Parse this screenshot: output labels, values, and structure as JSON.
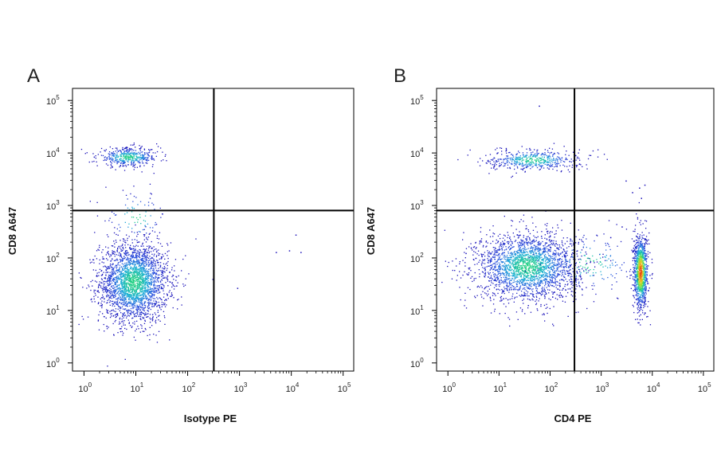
{
  "chart_data": [
    {
      "type": "scatter",
      "panel_label": "A",
      "xlabel": "Isotype PE",
      "ylabel": "CD8 A647",
      "x_scale": "log",
      "y_scale": "log",
      "xlim": [
        0.6,
        160000
      ],
      "ylim": [
        0.7,
        170000
      ],
      "x_ticks": [
        {
          "base": "10",
          "exp": "0",
          "value": 1
        },
        {
          "base": "10",
          "exp": "1",
          "value": 10
        },
        {
          "base": "10",
          "exp": "2",
          "value": 100
        },
        {
          "base": "10",
          "exp": "3",
          "value": 1000
        },
        {
          "base": "10",
          "exp": "4",
          "value": 10000
        },
        {
          "base": "10",
          "exp": "5",
          "value": 100000
        }
      ],
      "y_ticks": [
        {
          "base": "10",
          "exp": "0",
          "value": 1
        },
        {
          "base": "10",
          "exp": "1",
          "value": 10
        },
        {
          "base": "10",
          "exp": "2",
          "value": 100
        },
        {
          "base": "10",
          "exp": "3",
          "value": 1000
        },
        {
          "base": "10",
          "exp": "4",
          "value": 10000
        },
        {
          "base": "10",
          "exp": "5",
          "value": 100000
        }
      ],
      "quadrant_gate": {
        "x": 320,
        "y": 800
      },
      "populations": [
        {
          "x": 9,
          "y": 35,
          "spread_x": 0.33,
          "spread_y": 0.38,
          "count": 2600,
          "peak_color": "#26d060"
        },
        {
          "x": 7,
          "y": 8500,
          "spread_x": 0.3,
          "spread_y": 0.09,
          "count": 450,
          "peak_color": "#3a6ed8"
        },
        {
          "x": 10,
          "y": 600,
          "spread_x": 0.3,
          "spread_y": 0.25,
          "count": 90,
          "peak_color": "#2a3fd0"
        }
      ],
      "sparse_points": [
        [
          40,
          40
        ],
        [
          60,
          30
        ],
        [
          900,
          27
        ],
        [
          5000,
          130
        ],
        [
          9000,
          140
        ],
        [
          15000,
          130
        ],
        [
          12000,
          280
        ],
        [
          300,
          40
        ]
      ],
      "density_colors": [
        "#1a10b8",
        "#2d55e0",
        "#1fb0d8",
        "#20d080",
        "#9be030",
        "#f0c020",
        "#e84010"
      ]
    },
    {
      "type": "scatter",
      "panel_label": "B",
      "xlabel": "CD4 PE",
      "ylabel": "CD8 A647",
      "x_scale": "log",
      "y_scale": "log",
      "xlim": [
        0.6,
        160000
      ],
      "ylim": [
        0.7,
        170000
      ],
      "x_ticks": [
        {
          "base": "10",
          "exp": "0",
          "value": 1
        },
        {
          "base": "10",
          "exp": "1",
          "value": 10
        },
        {
          "base": "10",
          "exp": "2",
          "value": 100
        },
        {
          "base": "10",
          "exp": "3",
          "value": 1000
        },
        {
          "base": "10",
          "exp": "4",
          "value": 10000
        },
        {
          "base": "10",
          "exp": "5",
          "value": 100000
        }
      ],
      "y_ticks": [
        {
          "base": "10",
          "exp": "0",
          "value": 1
        },
        {
          "base": "10",
          "exp": "1",
          "value": 10
        },
        {
          "base": "10",
          "exp": "2",
          "value": 100
        },
        {
          "base": "10",
          "exp": "3",
          "value": 1000
        },
        {
          "base": "10",
          "exp": "4",
          "value": 10000
        },
        {
          "base": "10",
          "exp": "5",
          "value": 100000
        }
      ],
      "quadrant_gate": {
        "x": 300,
        "y": 800
      },
      "populations": [
        {
          "x": 35,
          "y": 70,
          "spread_x": 0.5,
          "spread_y": 0.32,
          "count": 2400,
          "peak_color": "#60d840"
        },
        {
          "x": 5800,
          "y": 55,
          "spread_x": 0.07,
          "spread_y": 0.35,
          "count": 1100,
          "peak_color": "#e84010"
        },
        {
          "x": 45,
          "y": 7500,
          "spread_x": 0.45,
          "spread_y": 0.1,
          "count": 500,
          "peak_color": "#3a6ed8"
        },
        {
          "x": 600,
          "y": 80,
          "spread_x": 0.45,
          "spread_y": 0.3,
          "count": 160,
          "peak_color": "#2a3fd0"
        }
      ],
      "sparse_points": [
        [
          60,
          80000
        ],
        [
          3000,
          3000
        ],
        [
          4000,
          1800
        ],
        [
          5500,
          2200
        ],
        [
          7000,
          2500
        ],
        [
          2500,
          400
        ],
        [
          1500,
          250
        ],
        [
          6000,
          1400
        ]
      ],
      "density_colors": [
        "#1a10b8",
        "#2d55e0",
        "#1fb0d8",
        "#20d080",
        "#9be030",
        "#f0c020",
        "#e84010"
      ]
    }
  ]
}
